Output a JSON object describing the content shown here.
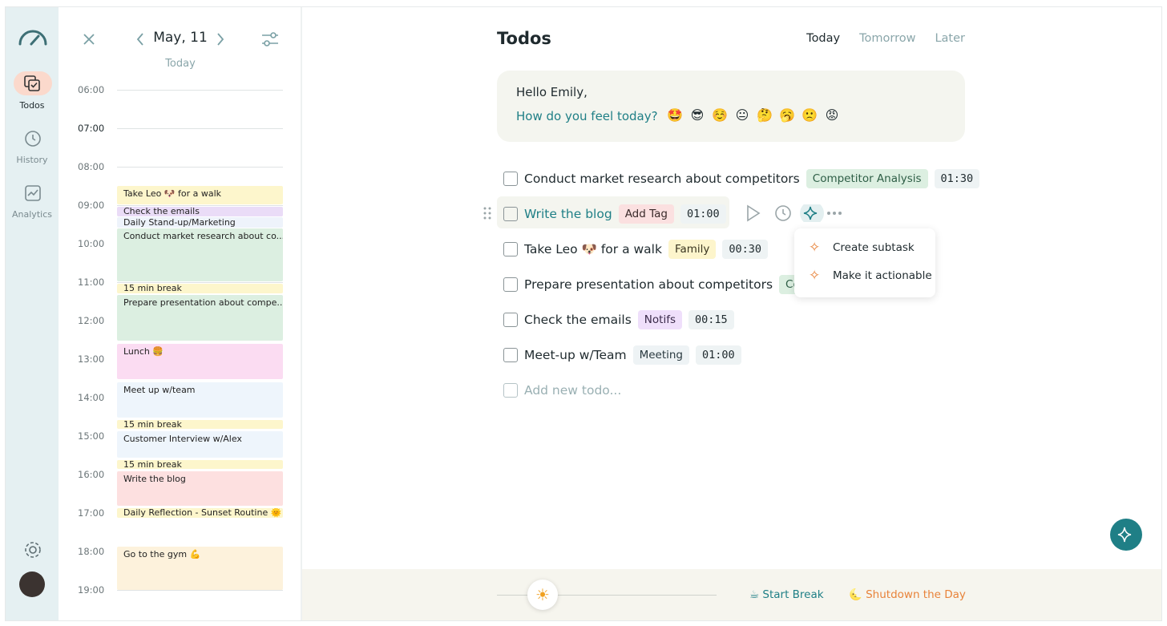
{
  "sidebar": {
    "nav": [
      "Todos",
      "History",
      "Analytics"
    ]
  },
  "calendar": {
    "date": "May, 11",
    "subtitle": "Today",
    "hours": [
      "06:00",
      "07:00",
      "08:00",
      "09:00",
      "10:00",
      "11:00",
      "12:00",
      "13:00",
      "14:00",
      "15:00",
      "16:00",
      "17:00",
      "18:00",
      "19:00"
    ],
    "events": [
      "Take Leo 🐶 for a walk",
      "Check the emails",
      "Daily Stand-up/Marketing",
      "Conduct market research about co...",
      "15 min break",
      "Prepare presentation about compe...",
      "Lunch 🍔",
      "Meet up w/team",
      "15 min break",
      "Customer Interview w/Alex",
      "15 min break",
      "Write the blog",
      "Daily Reflection - Sunset Routine 🌞",
      "Go to the gym 💪"
    ]
  },
  "todos": {
    "title": "Todos",
    "tabs": [
      "Today",
      "Tomorrow",
      "Later"
    ],
    "greeting": "Hello Emily,",
    "prompt": "How do you feel today?",
    "moods": [
      "🤩",
      "😎",
      "☺️",
      "😐",
      "🤔",
      "🥱",
      "🙁",
      "😡"
    ],
    "items": [
      {
        "text": "Conduct market research about competitors",
        "tag": "Competitor Analysis",
        "time": "01:30"
      },
      {
        "text": "Write the blog",
        "tag": "Add Tag",
        "time": "01:00"
      },
      {
        "text": "Take Leo 🐶 for a walk",
        "tag": "Family",
        "time": "00:30"
      },
      {
        "text": "Prepare presentation about competitors",
        "tag": "Competitor Analysis"
      },
      {
        "text": "Check the emails",
        "tag": "Notifs",
        "time": "00:15"
      },
      {
        "text": "Meet-up w/Team",
        "tag": "Meeting",
        "time": "01:00"
      }
    ],
    "add_placeholder": "Add new todo...",
    "menu": [
      "Create subtask",
      "Make it actionable"
    ]
  },
  "footer": {
    "start_break": "☕ Start Break",
    "shutdown": "🌜 Shutdown the Day"
  }
}
